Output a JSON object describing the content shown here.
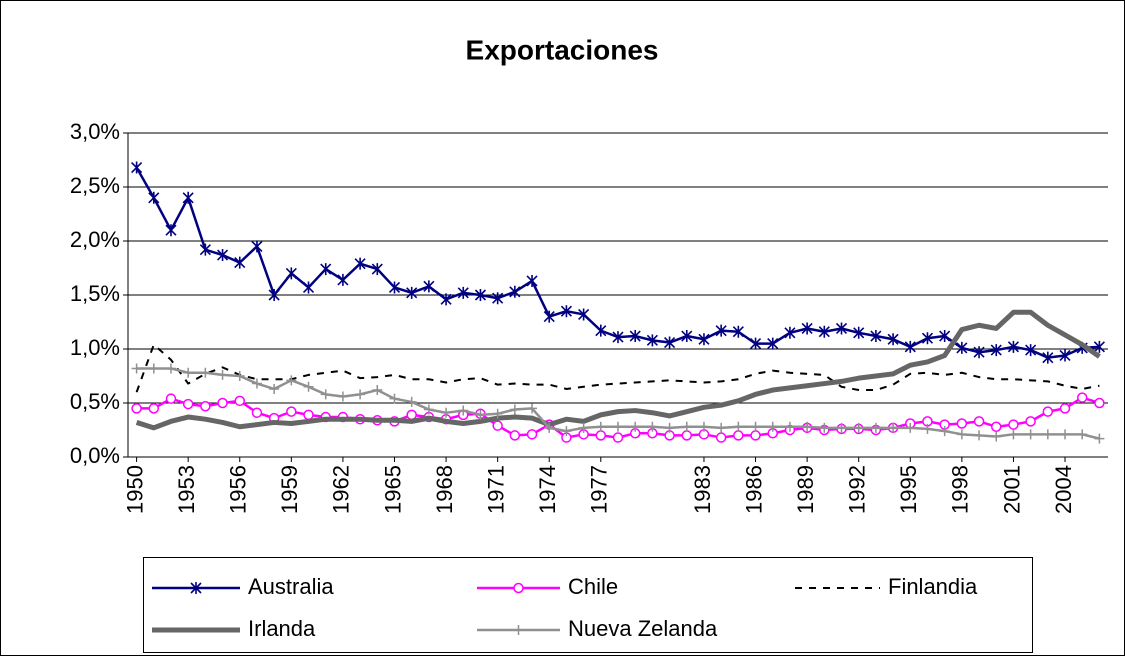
{
  "chart_data": {
    "type": "line",
    "title": "Exportaciones",
    "x": [
      1950,
      1951,
      1952,
      1953,
      1954,
      1955,
      1956,
      1957,
      1958,
      1959,
      1960,
      1961,
      1962,
      1963,
      1964,
      1965,
      1966,
      1967,
      1968,
      1969,
      1970,
      1971,
      1972,
      1973,
      1974,
      1975,
      1976,
      1977,
      1978,
      1979,
      1980,
      1981,
      1982,
      1983,
      1984,
      1985,
      1986,
      1987,
      1988,
      1989,
      1990,
      1991,
      1992,
      1993,
      1994,
      1995,
      1996,
      1997,
      1998,
      1999,
      2000,
      2001,
      2002,
      2003,
      2004,
      2005,
      2006
    ],
    "xticks": [
      1950,
      1953,
      1956,
      1959,
      1962,
      1965,
      1968,
      1971,
      1974,
      1977,
      1983,
      1986,
      1989,
      1992,
      1995,
      1998,
      2001,
      2004
    ],
    "ylim": [
      0,
      3
    ],
    "yticks": [
      {
        "value": 0,
        "label": "0,0%"
      },
      {
        "value": 0.5,
        "label": "0,5%"
      },
      {
        "value": 1,
        "label": "1,0%"
      },
      {
        "value": 1.5,
        "label": "1,5%"
      },
      {
        "value": 2,
        "label": "2,0%"
      },
      {
        "value": 2.5,
        "label": "2,5%"
      },
      {
        "value": 3,
        "label": "3,0%"
      }
    ],
    "grid": true,
    "legend": "bottom",
    "series": [
      {
        "name": "Australia",
        "color": "#000080",
        "marker": "asterisk",
        "line_style": "solid",
        "values": [
          2.68,
          2.4,
          2.1,
          2.4,
          1.92,
          1.87,
          1.8,
          1.95,
          1.5,
          1.7,
          1.57,
          1.74,
          1.64,
          1.79,
          1.74,
          1.57,
          1.52,
          1.58,
          1.46,
          1.52,
          1.5,
          1.47,
          1.53,
          1.63,
          1.3,
          1.35,
          1.32,
          1.17,
          1.11,
          1.12,
          1.08,
          1.06,
          1.12,
          1.09,
          1.17,
          1.16,
          1.05,
          1.05,
          1.15,
          1.19,
          1.16,
          1.19,
          1.15,
          1.12,
          1.09,
          1.02,
          1.1,
          1.12,
          1.01,
          0.97,
          0.99,
          1.02,
          0.99,
          0.92,
          0.94,
          1.01,
          1.02
        ]
      },
      {
        "name": "Chile",
        "color": "#ff00ff",
        "marker": "circle",
        "line_style": "solid",
        "values": [
          0.45,
          0.45,
          0.54,
          0.49,
          0.47,
          0.5,
          0.52,
          0.41,
          0.36,
          0.42,
          0.39,
          0.37,
          0.37,
          0.35,
          0.34,
          0.33,
          0.39,
          0.37,
          0.35,
          0.39,
          0.4,
          0.29,
          0.2,
          0.21,
          0.3,
          0.18,
          0.21,
          0.2,
          0.18,
          0.22,
          0.22,
          0.2,
          0.2,
          0.21,
          0.18,
          0.2,
          0.2,
          0.22,
          0.25,
          0.27,
          0.25,
          0.26,
          0.26,
          0.25,
          0.27,
          0.31,
          0.33,
          0.3,
          0.31,
          0.33,
          0.28,
          0.3,
          0.33,
          0.42,
          0.45,
          0.55,
          0.5
        ]
      },
      {
        "name": "Finlandia",
        "color": "#000000",
        "marker": "none",
        "line_style": "dashed",
        "values": [
          0.6,
          1.04,
          0.9,
          0.68,
          0.77,
          0.83,
          0.76,
          0.72,
          0.72,
          0.72,
          0.76,
          0.78,
          0.8,
          0.73,
          0.74,
          0.76,
          0.72,
          0.72,
          0.69,
          0.72,
          0.73,
          0.67,
          0.68,
          0.67,
          0.67,
          0.63,
          0.65,
          0.67,
          0.68,
          0.69,
          0.7,
          0.71,
          0.7,
          0.69,
          0.7,
          0.72,
          0.77,
          0.8,
          0.78,
          0.77,
          0.76,
          0.65,
          0.62,
          0.62,
          0.67,
          0.77,
          0.78,
          0.76,
          0.78,
          0.74,
          0.72,
          0.72,
          0.71,
          0.7,
          0.66,
          0.63,
          0.66
        ]
      },
      {
        "name": "Irlanda",
        "color": "#666666",
        "marker": "none",
        "line_style": "bold",
        "values": [
          0.32,
          0.27,
          0.33,
          0.37,
          0.35,
          0.32,
          0.28,
          0.3,
          0.32,
          0.31,
          0.33,
          0.35,
          0.35,
          0.35,
          0.34,
          0.34,
          0.33,
          0.36,
          0.33,
          0.31,
          0.33,
          0.36,
          0.37,
          0.36,
          0.3,
          0.35,
          0.33,
          0.39,
          0.42,
          0.43,
          0.41,
          0.38,
          0.42,
          0.46,
          0.48,
          0.52,
          0.58,
          0.62,
          0.64,
          0.66,
          0.68,
          0.7,
          0.73,
          0.75,
          0.77,
          0.85,
          0.88,
          0.94,
          1.18,
          1.22,
          1.19,
          1.34,
          1.34,
          1.22,
          1.13,
          1.04,
          0.93
        ]
      },
      {
        "name": "Nueva Zelanda",
        "color": "#909090",
        "marker": "plus",
        "line_style": "solid",
        "values": [
          0.82,
          0.82,
          0.82,
          0.78,
          0.78,
          0.76,
          0.75,
          0.68,
          0.63,
          0.71,
          0.65,
          0.58,
          0.56,
          0.58,
          0.62,
          0.54,
          0.51,
          0.44,
          0.41,
          0.43,
          0.39,
          0.4,
          0.44,
          0.45,
          0.27,
          0.24,
          0.27,
          0.28,
          0.28,
          0.28,
          0.28,
          0.27,
          0.28,
          0.28,
          0.27,
          0.28,
          0.28,
          0.28,
          0.28,
          0.28,
          0.27,
          0.27,
          0.27,
          0.27,
          0.27,
          0.27,
          0.26,
          0.24,
          0.21,
          0.2,
          0.19,
          0.21,
          0.21,
          0.21,
          0.21,
          0.21,
          0.17
        ]
      }
    ]
  }
}
